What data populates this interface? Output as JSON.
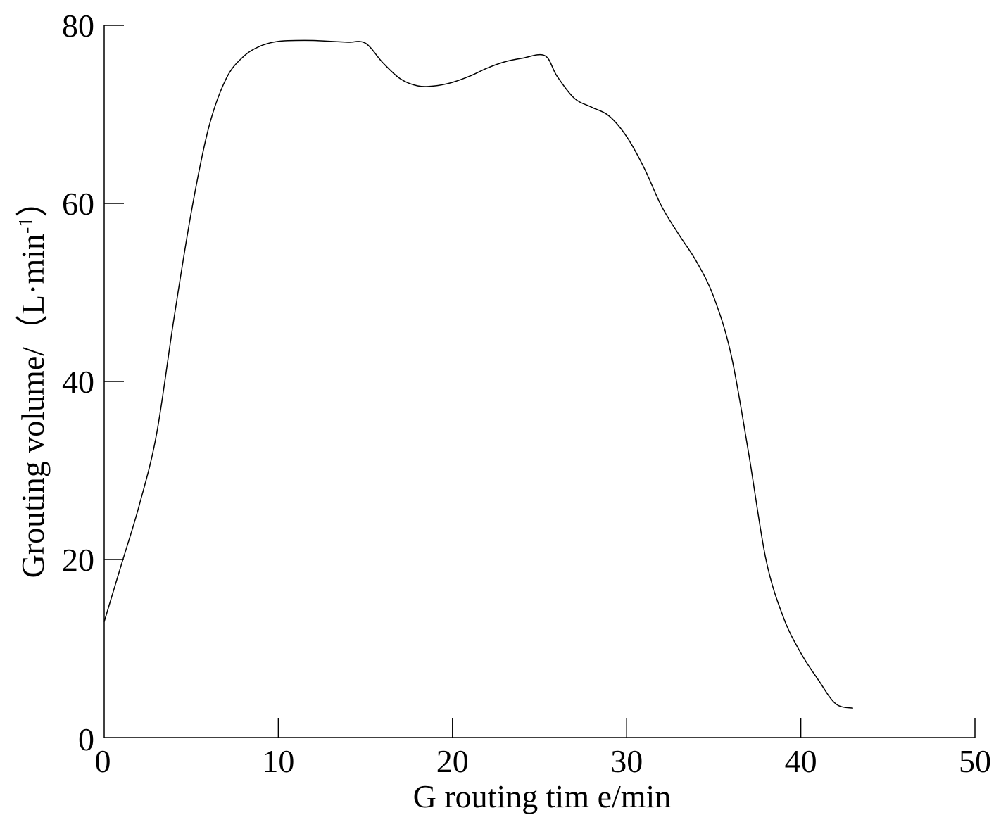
{
  "chart_data": {
    "type": "line",
    "title": "",
    "xlabel": "G routing tim e/min",
    "ylabel": "Grouting volume/（L·min",
    "ylabel_sup": "-1",
    "ylabel_close": "）",
    "xlim": [
      0,
      50
    ],
    "ylim": [
      0,
      80
    ],
    "xticks": [
      0,
      10,
      20,
      30,
      40,
      50
    ],
    "yticks": [
      0,
      20,
      40,
      60,
      80
    ],
    "xtick_labels": [
      "0",
      "10",
      "20",
      "30",
      "40",
      "50"
    ],
    "ytick_labels": [
      "0",
      "20",
      "40",
      "60",
      "80"
    ],
    "grid": false,
    "series": [
      {
        "color": "#000000",
        "x": [
          0,
          1,
          2,
          3,
          4,
          5,
          6,
          7,
          8,
          9,
          10,
          11,
          12,
          13,
          14,
          15,
          16,
          17,
          18,
          19,
          20,
          21,
          22,
          23,
          24,
          25.3,
          26,
          27,
          28,
          29,
          30,
          31,
          32,
          33,
          34,
          35,
          36,
          37,
          38,
          39,
          40,
          41,
          42,
          43
        ],
        "y": [
          13,
          19.5,
          26,
          34,
          47,
          59,
          68.5,
          74,
          76.5,
          77.7,
          78.2,
          78.3,
          78.3,
          78.2,
          78.1,
          78,
          75.8,
          74,
          73.2,
          73.2,
          73.6,
          74.3,
          75.2,
          75.9,
          76.3,
          76.6,
          74.3,
          71.8,
          70.8,
          69.8,
          67.5,
          64,
          59.7,
          56.5,
          53.5,
          49.5,
          43,
          32,
          20,
          13.5,
          9.5,
          6.5,
          3.8,
          3.3
        ]
      }
    ]
  }
}
